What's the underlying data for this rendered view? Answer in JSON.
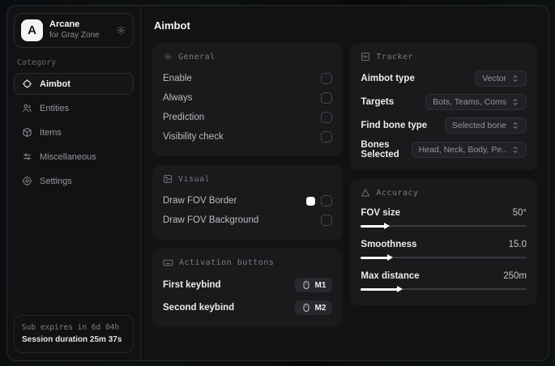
{
  "sidebar": {
    "app": {
      "logo_letter": "A",
      "name": "Arcane",
      "subtitle": "for Gray Zone"
    },
    "category_label": "Category",
    "items": [
      {
        "label": "Aimbot"
      },
      {
        "label": "Entities"
      },
      {
        "label": "Items"
      },
      {
        "label": "Miscellaneous"
      },
      {
        "label": "Settings"
      }
    ],
    "footer": {
      "line1": "Sub expires in 6d 04h",
      "line2": "Session duration 25m 37s"
    }
  },
  "main": {
    "title": "Aimbot",
    "cards": {
      "general": {
        "title": "General",
        "rows": [
          {
            "label": "Enable"
          },
          {
            "label": "Always"
          },
          {
            "label": "Prediction"
          },
          {
            "label": "Visibility check"
          }
        ]
      },
      "visual": {
        "title": "Visual",
        "rows": [
          {
            "label": "Draw FOV Border",
            "color": "#ffffff"
          },
          {
            "label": "Draw FOV Background"
          }
        ]
      },
      "activation": {
        "title": "Activation buttons",
        "rows": [
          {
            "label": "First keybind",
            "key": "M1"
          },
          {
            "label": "Second keybind",
            "key": "M2"
          }
        ]
      },
      "tracker": {
        "title": "Tracker",
        "rows": [
          {
            "label": "Aimbot type",
            "value": "Vector"
          },
          {
            "label": "Targets",
            "value": "Bots, Teams, Coms"
          },
          {
            "label": "Find bone type",
            "value": "Selected bone"
          },
          {
            "label": "Bones Selected",
            "value": "Head, Neck, Body, Pe.."
          }
        ]
      },
      "accuracy": {
        "title": "Accuracy",
        "rows": [
          {
            "label": "FOV size",
            "value": "50°",
            "percent": 15
          },
          {
            "label": "Smoothness",
            "value": "15.0",
            "percent": 17
          },
          {
            "label": "Max distance",
            "value": "250m",
            "percent": 23
          }
        ]
      }
    }
  },
  "colors": {
    "window_bg": "#121214",
    "card_bg": "#1a1a1d",
    "accent": "#ffffff",
    "muted_text": "#7b7b81"
  }
}
